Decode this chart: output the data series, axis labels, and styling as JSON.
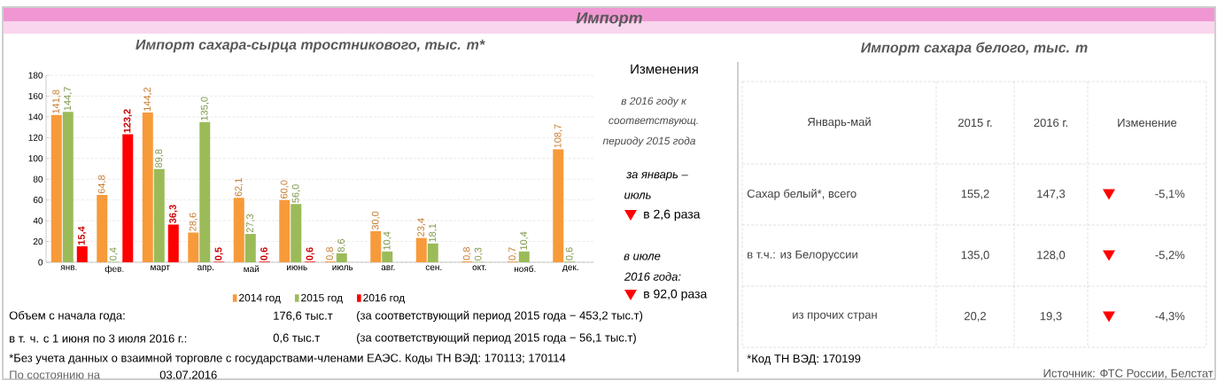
{
  "chart_data": [
    {
      "type": "bar",
      "title": "Импорт сахара-сырца тростникового, тыс. т*",
      "categories": [
        "янв.",
        "фев.",
        "март",
        "апр.",
        "май",
        "июнь",
        "июль",
        "авг.",
        "сен.",
        "окт.",
        "нояб.",
        "дек."
      ],
      "series": [
        {
          "name": "2014 год",
          "color": "#f79a3a",
          "values": [
            141.8,
            64.8,
            144.2,
            28.6,
            62.1,
            60.0,
            0.8,
            30.0,
            23.4,
            0.8,
            0.7,
            108.7
          ],
          "value_labels": [
            "141,8",
            "64,8",
            "144,2",
            "28,6",
            "62,1",
            "60,0",
            "0,8",
            "30,0",
            "23,4",
            "0,8",
            "0,7",
            "108,7"
          ]
        },
        {
          "name": "2015 год",
          "color": "#9bbb59",
          "values": [
            144.7,
            0.4,
            89.8,
            135.0,
            27.3,
            56.0,
            8.6,
            10.4,
            18.1,
            0.3,
            10.4,
            0.6
          ],
          "value_labels": [
            "144,7",
            "0,4",
            "89,8",
            "135,0",
            "27,3",
            "56,0",
            "8,6",
            "10,4",
            "18,1",
            "0,3",
            "10,4",
            "0,6"
          ]
        },
        {
          "name": "2016 год",
          "color": "#ff0000",
          "values": [
            15.4,
            123.2,
            36.3,
            0.5,
            0.6,
            0.6,
            null,
            null,
            null,
            null,
            null,
            null
          ],
          "value_labels": [
            "15,4",
            "123,2",
            "36,3",
            "0,5",
            "0,6",
            "0,6",
            null,
            null,
            null,
            null,
            null,
            null
          ]
        }
      ],
      "ylim": [
        0,
        180
      ],
      "yticks": [
        0,
        20,
        40,
        60,
        80,
        100,
        120,
        140,
        160,
        180
      ],
      "grid": "y",
      "legend": "bottom",
      "annotations": [
        "Импорт",
        "Изменения",
        "в 2016 году  к",
        "соответствующ.",
        "периоду 2015 года",
        "за январь –",
        "июль",
        "в 2,6 раза",
        "в июле",
        "2016 года:",
        "в 92,0 раза",
        "Объем с начала года:",
        "176,6 тыс.т",
        "(за соответствующий период 2015 года − 453,2 тыс.т)",
        "в т. ч. с 1 июня по 3 июля 2016 г.:",
        "0,6 тыс.т",
        "(за соответствующий период 2015 года − 56,1 тыс.т)",
        "*Без учета данных о взаимной торговле с государствами-членами ЕАЭС. Коды ТН ВЭД: 170113; 170114",
        "По состоянию на",
        "03.07.2016"
      ]
    },
    {
      "type": "other",
      "title": "Импорт сахара белого, тыс. т",
      "ylabel": "Январь-май",
      "categories": [
        "2015 г.",
        "2016 г.",
        "Изменение"
      ],
      "series": [
        {
          "name": "Сахар белый*, всего",
          "values": [
            155.2,
            147.3,
            -5.1
          ],
          "value_labels": [
            "155,2",
            "147,3",
            "-5,1%"
          ]
        },
        {
          "name": "в т.ч.: из Белоруссии",
          "values": [
            135.0,
            128.0,
            -5.2
          ],
          "value_labels": [
            "135,0",
            "128,0",
            "-5,2%"
          ]
        },
        {
          "name": "из прочих стран",
          "values": [
            20.2,
            19.3,
            -4.3
          ],
          "value_labels": [
            "20,2",
            "19,3",
            "-4,3%"
          ]
        }
      ],
      "annotations": [
        "*Код ТН ВЭД: 170199",
        "Источник: ФТС России, Белстат"
      ]
    }
  ]
}
